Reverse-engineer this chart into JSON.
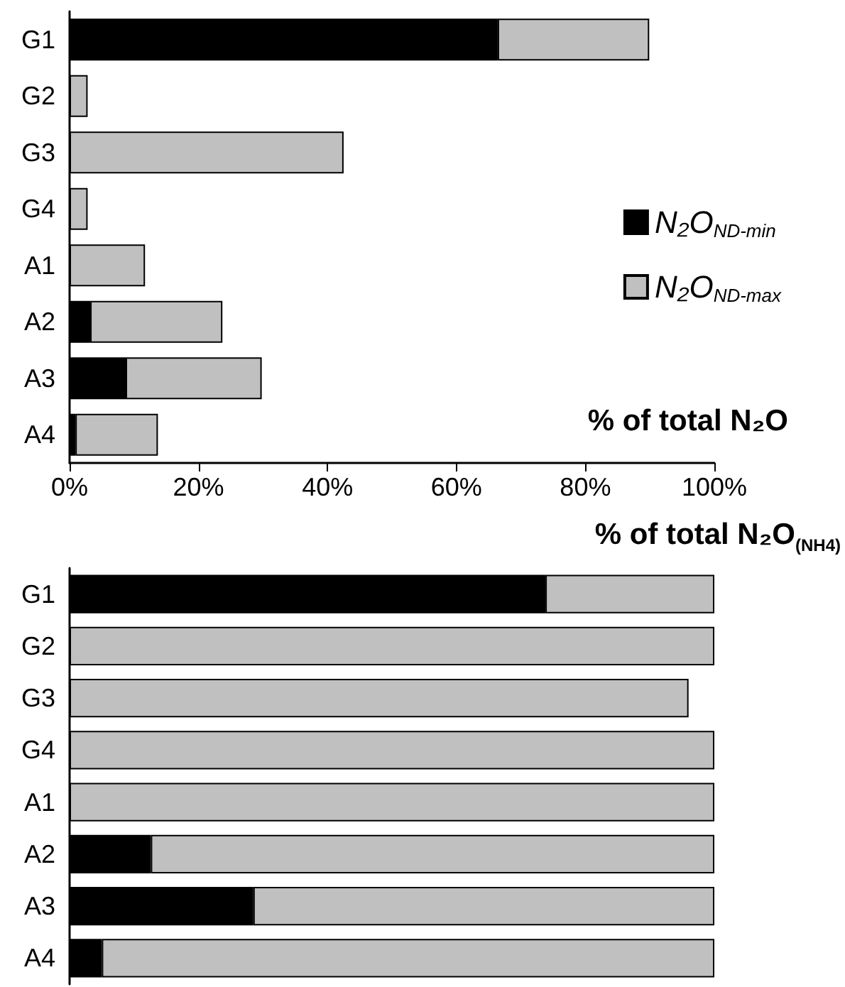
{
  "chart_data": [
    {
      "type": "bar",
      "orientation": "horizontal",
      "stacked": true,
      "xlabel": "% of total N₂O",
      "categories": [
        "G1",
        "G2",
        "G3",
        "G4",
        "A1",
        "A2",
        "A3",
        "A4"
      ],
      "series": [
        {
          "name": "N₂O$_{ND-min}$",
          "color": "#000000",
          "values": [
            66.4,
            0,
            0,
            0,
            0,
            3.2,
            8.7,
            0.9
          ]
        },
        {
          "name": "N₂O$_{ND-max}$",
          "color": "#c0c0c0",
          "values": [
            23.5,
            2.8,
            42.5,
            2.8,
            11.7,
            20.5,
            21.1,
            12.8
          ]
        }
      ],
      "xlim": [
        0,
        100
      ],
      "xticks": [
        {
          "value": 0,
          "label": "0%"
        },
        {
          "value": 20,
          "label": "20%"
        },
        {
          "value": 40,
          "label": "40%"
        },
        {
          "value": 60,
          "label": "60%"
        },
        {
          "value": 80,
          "label": "80%"
        },
        {
          "value": 100,
          "label": "100%"
        }
      ],
      "legend": "right",
      "grid": false
    },
    {
      "type": "bar",
      "orientation": "horizontal",
      "stacked": true,
      "xlabel": "% of total N₂O$_{(NH4)}$",
      "categories": [
        "G1",
        "G2",
        "G3",
        "G4",
        "A1",
        "A2",
        "A3",
        "A4"
      ],
      "series": [
        {
          "color": "#000000",
          "values": [
            73.8,
            0,
            0,
            0,
            0,
            12.6,
            28.5,
            5.0
          ]
        },
        {
          "color": "#c0c0c0",
          "values": [
            26.2,
            100,
            96.0,
            100,
            100,
            87.4,
            71.5,
            95.0
          ]
        }
      ],
      "xlim": [
        0,
        100
      ],
      "tick_labels": "y",
      "grid": false
    }
  ]
}
